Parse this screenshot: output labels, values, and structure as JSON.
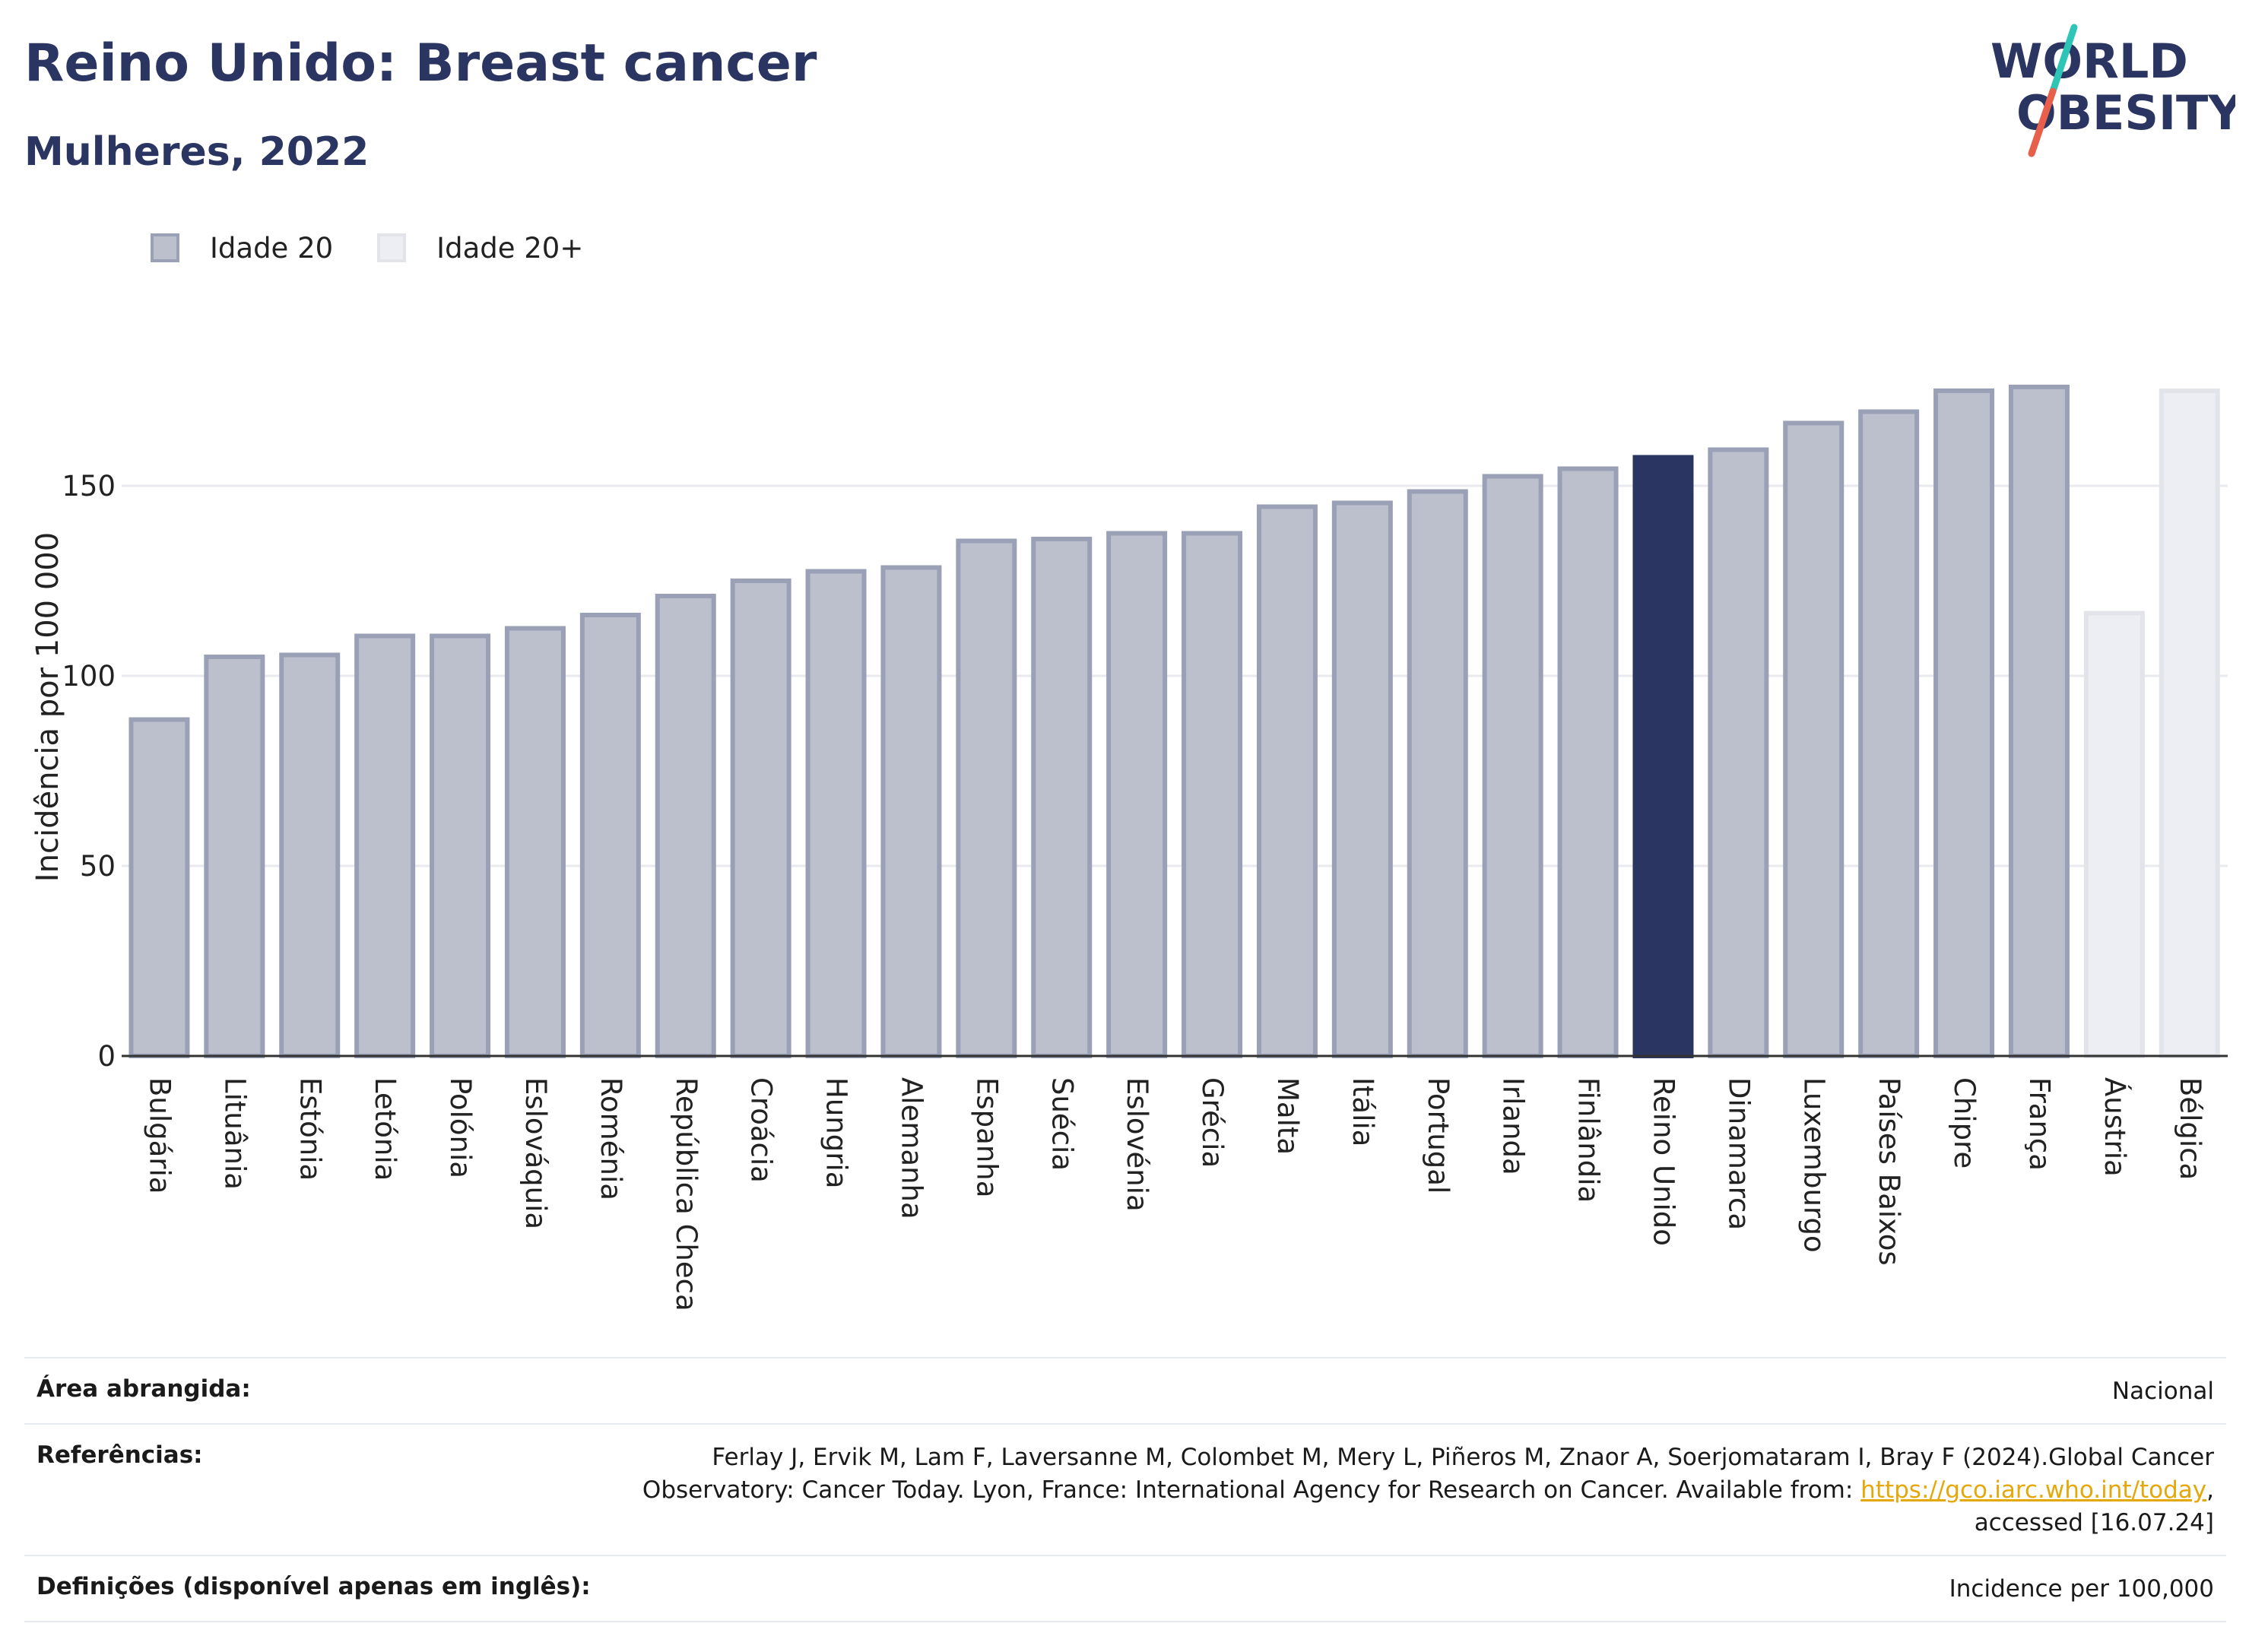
{
  "header": {
    "title": "Reino Unido: Breast cancer",
    "subtitle": "Mulheres, 2022"
  },
  "logo": {
    "line1": "WORLD",
    "line2": "OBESITY",
    "slash_colors": [
      "#2ec4b6",
      "#e8604c"
    ]
  },
  "legend": {
    "items": [
      {
        "label": "Idade 20",
        "fill": "#bcc0cd",
        "stroke": "#9aa0b6"
      },
      {
        "label": "Idade 20+",
        "fill": "#eceef3",
        "stroke": "#e2e4ea"
      }
    ]
  },
  "chart_data": {
    "type": "bar",
    "title": "",
    "xlabel": "",
    "ylabel": "Incidência por 100 000",
    "ylim": [
      0,
      190
    ],
    "yticks": [
      0,
      50,
      100,
      150
    ],
    "grid": true,
    "legend_position": "top-left",
    "highlight": "Reino Unido",
    "colors": {
      "age20_fill": "#bcc0cd",
      "age20_stroke": "#9aa0b6",
      "age20plus_fill": "#eceef3",
      "age20plus_stroke": "#e2e4ea",
      "highlight": "#2b3561",
      "grid": "#e9eaef",
      "axis": "#333333"
    },
    "categories": [
      "Bulgária",
      "Lituânia",
      "Estónia",
      "Letónia",
      "Polónia",
      "Eslováquia",
      "Roménia",
      "República Checa",
      "Croácia",
      "Hungria",
      "Alemanha",
      "Espanha",
      "Suécia",
      "Eslovénia",
      "Grécia",
      "Malta",
      "Itália",
      "Portugal",
      "Irlanda",
      "Finlândia",
      "Reino Unido",
      "Dinamarca",
      "Luxemburgo",
      "Países Baixos",
      "Chipre",
      "França",
      "Áustria",
      "Bélgica"
    ],
    "values": [
      88.5,
      105,
      105.5,
      110.5,
      110.5,
      112.5,
      116,
      121,
      125,
      127.5,
      128.5,
      135.5,
      136,
      137.5,
      137.5,
      144.5,
      145.5,
      148.5,
      152.5,
      154.5,
      157.5,
      159.5,
      166.5,
      169.5,
      175,
      176,
      116.5,
      175
    ],
    "groups": [
      "Idade 20",
      "Idade 20",
      "Idade 20",
      "Idade 20",
      "Idade 20",
      "Idade 20",
      "Idade 20",
      "Idade 20",
      "Idade 20",
      "Idade 20",
      "Idade 20",
      "Idade 20",
      "Idade 20",
      "Idade 20",
      "Idade 20",
      "Idade 20",
      "Idade 20",
      "Idade 20",
      "Idade 20",
      "Idade 20",
      "Idade 20",
      "Idade 20",
      "Idade 20",
      "Idade 20",
      "Idade 20",
      "Idade 20",
      "Idade 20+",
      "Idade 20+"
    ]
  },
  "footer": {
    "rows": [
      {
        "label": "Área abrangida:",
        "value": "Nacional"
      },
      {
        "label": "Referências:",
        "value_before": "Ferlay J, Ervik M, Lam F, Laversanne M, Colombet M, Mery L, Piñeros M, Znaor A, Soerjomataram I, Bray F (2024).Global Cancer Observatory: Cancer Today. Lyon, France: International Agency for Research on Cancer. Available from: ",
        "link": "https://gco.iarc.who.int/today",
        "value_after": ", accessed [16.07.24]"
      },
      {
        "label": "Definições (disponível apenas em inglês):",
        "value": "Incidence per 100,000"
      }
    ]
  }
}
